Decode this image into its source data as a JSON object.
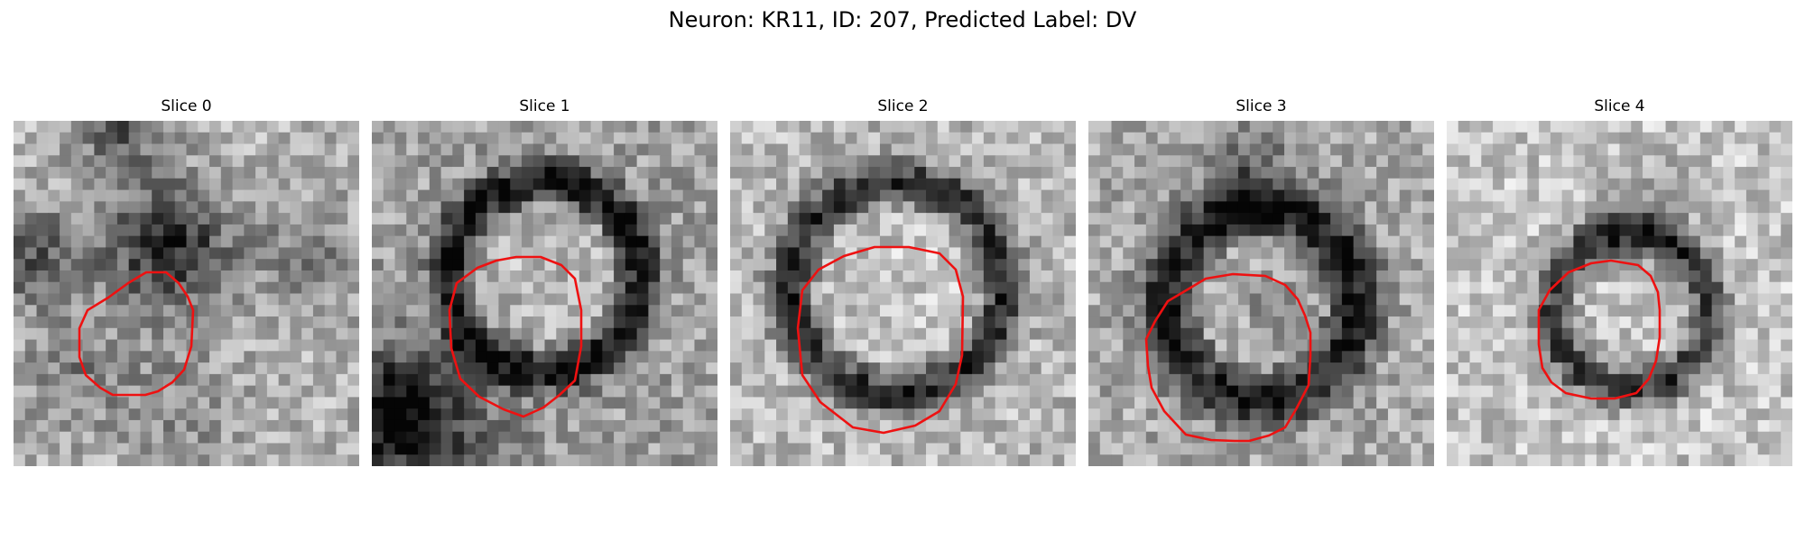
{
  "figure": {
    "title": "Neuron: KR11, ID: 207, Predicted Label: DV"
  },
  "panels": [
    {
      "title": "Slice 0"
    },
    {
      "title": "Slice 1"
    },
    {
      "title": "Slice 2"
    },
    {
      "title": "Slice 3"
    },
    {
      "title": "Slice 4"
    }
  ],
  "colors": {
    "contour": "#ee1111",
    "background": "#ffffff"
  }
}
